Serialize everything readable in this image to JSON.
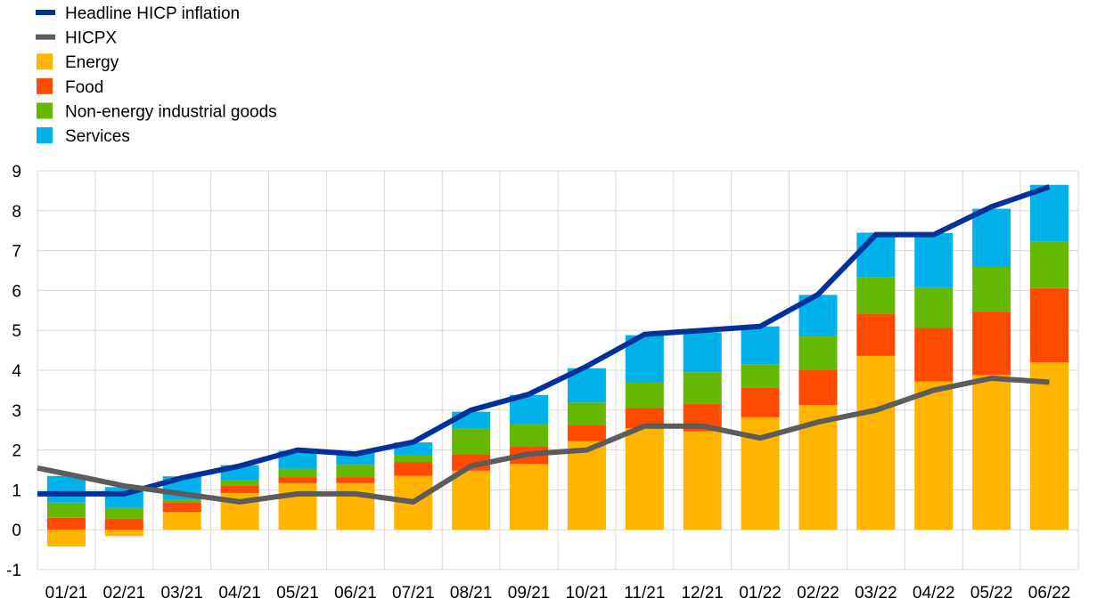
{
  "chart_data": {
    "type": "bar",
    "stacked": true,
    "title": "",
    "xlabel": "",
    "ylabel": "",
    "ylim": [
      -1,
      9
    ],
    "yticks": [
      -1,
      0,
      1,
      2,
      3,
      4,
      5,
      6,
      7,
      8,
      9
    ],
    "grid": true,
    "legend_position": "top-left",
    "categories": [
      "01/21",
      "02/21",
      "03/21",
      "04/21",
      "05/21",
      "06/21",
      "07/21",
      "08/21",
      "09/21",
      "10/21",
      "11/21",
      "12/21",
      "01/22",
      "02/22",
      "03/22",
      "04/22",
      "05/22",
      "06/22"
    ],
    "series": [
      {
        "name": "Energy",
        "kind": "bar",
        "color": "#ffb400",
        "values": [
          -0.42,
          -0.16,
          0.45,
          0.92,
          1.17,
          1.17,
          1.35,
          1.48,
          1.65,
          2.22,
          2.55,
          2.47,
          2.82,
          3.13,
          4.36,
          3.72,
          3.88,
          4.2
        ]
      },
      {
        "name": "Food",
        "kind": "bar",
        "color": "#ff4b00",
        "values": [
          0.3,
          0.28,
          0.24,
          0.18,
          0.15,
          0.15,
          0.35,
          0.41,
          0.43,
          0.41,
          0.5,
          0.69,
          0.75,
          0.88,
          1.06,
          1.34,
          1.59,
          1.86
        ]
      },
      {
        "name": "Non-energy industrial goods",
        "kind": "bar",
        "color": "#65b800",
        "values": [
          0.38,
          0.27,
          0.06,
          0.14,
          0.21,
          0.31,
          0.18,
          0.64,
          0.57,
          0.56,
          0.66,
          0.79,
          0.57,
          0.84,
          0.92,
          1.02,
          1.12,
          1.16
        ]
      },
      {
        "name": "Services",
        "kind": "bar",
        "color": "#00b1ea",
        "values": [
          0.67,
          0.52,
          0.59,
          0.38,
          0.45,
          0.31,
          0.31,
          0.43,
          0.73,
          0.86,
          1.17,
          1.0,
          0.96,
          1.04,
          1.11,
          1.36,
          1.46,
          1.43
        ]
      },
      {
        "name": "Headline HICP inflation",
        "kind": "line",
        "color": "#003299",
        "values": [
          0.9,
          0.9,
          1.3,
          1.6,
          2.0,
          1.9,
          2.2,
          3.0,
          3.4,
          4.1,
          4.9,
          5.0,
          5.1,
          5.9,
          7.4,
          7.4,
          8.1,
          8.6
        ]
      },
      {
        "name": "HICPX",
        "kind": "line",
        "color": "#5c5c5c",
        "values": [
          1.4,
          1.1,
          0.9,
          0.7,
          0.9,
          0.9,
          0.7,
          1.6,
          1.9,
          2.0,
          2.6,
          2.6,
          2.3,
          2.7,
          3.0,
          3.5,
          3.8,
          3.7
        ]
      }
    ],
    "legend_order": [
      "Headline HICP inflation",
      "HICPX",
      "Energy",
      "Food",
      "Non-energy industrial goods",
      "Services"
    ]
  }
}
